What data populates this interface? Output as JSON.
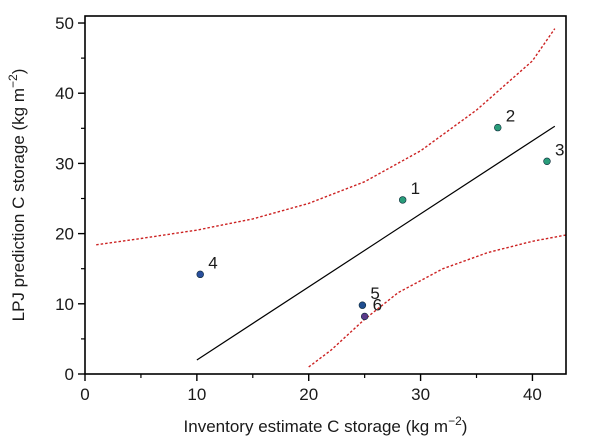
{
  "chart_data": {
    "type": "scatter",
    "xlabel": {
      "prefix": "Inventory estimate C storage (kg m",
      "sup": "−2",
      "suffix": ")"
    },
    "ylabel": {
      "prefix": "LPJ prediction C storage (kg m",
      "sup": "−2",
      "suffix": ")"
    },
    "xlim": [
      0,
      43
    ],
    "ylim": [
      0,
      51
    ],
    "xticks": [
      0,
      10,
      20,
      30,
      40
    ],
    "yticks": [
      0,
      10,
      20,
      30,
      40,
      50
    ],
    "xminor": [
      5,
      15,
      25,
      35
    ],
    "yminor": [
      5,
      15,
      25,
      35,
      45
    ],
    "grid": false,
    "points": [
      {
        "label": "1",
        "x": 28.4,
        "y": 24.8,
        "color": "#2a9d7a"
      },
      {
        "label": "2",
        "x": 36.9,
        "y": 35.1,
        "color": "#2a9d7a"
      },
      {
        "label": "3",
        "x": 41.3,
        "y": 30.3,
        "color": "#2a9d7a"
      },
      {
        "label": "4",
        "x": 10.3,
        "y": 14.2,
        "color": "#2a4f9d"
      },
      {
        "label": "5",
        "x": 24.8,
        "y": 9.8,
        "color": "#1f4d8f"
      },
      {
        "label": "6",
        "x": 25.0,
        "y": 8.2,
        "color": "#5a3a8a"
      }
    ],
    "regression_line": {
      "x": [
        10.0,
        42.0
      ],
      "y": [
        2.0,
        35.3
      ],
      "color": "#000000"
    },
    "upper_band": {
      "color": "#cc2222",
      "x": [
        1,
        5,
        10,
        15,
        20,
        25,
        30,
        35,
        40,
        42
      ],
      "y": [
        18.4,
        19.3,
        20.5,
        22.1,
        24.3,
        27.4,
        31.8,
        37.6,
        44.6,
        49.2
      ]
    },
    "lower_band": {
      "color": "#cc2222",
      "x": [
        20,
        22,
        25,
        28,
        32,
        36,
        40,
        43
      ],
      "y": [
        1.0,
        3.4,
        7.8,
        11.6,
        15.0,
        17.3,
        18.9,
        19.8
      ]
    }
  }
}
